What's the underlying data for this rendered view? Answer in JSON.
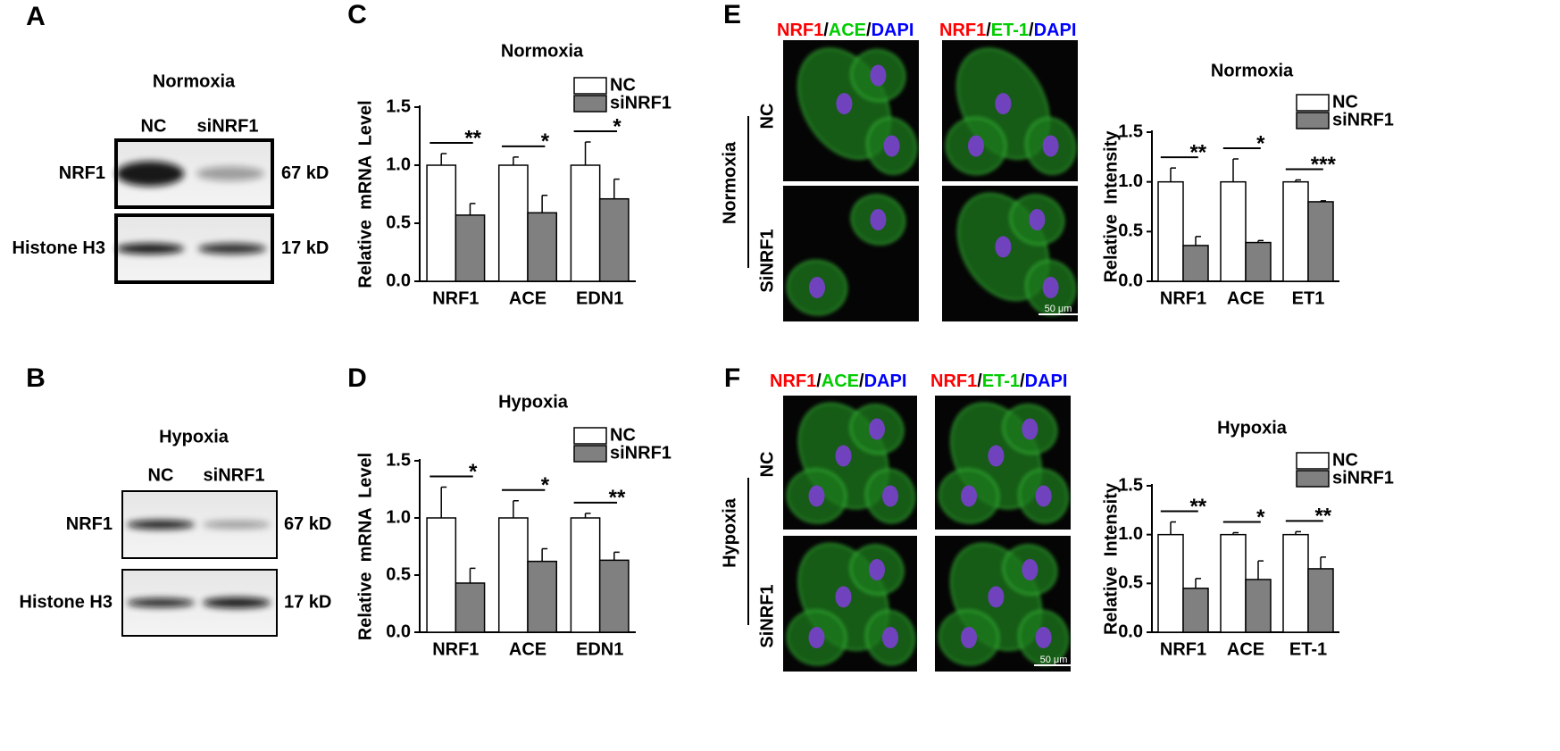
{
  "panels": {
    "A": {
      "letter": "A",
      "title": "Normoxia",
      "lanes": [
        "NC",
        "siNRF1"
      ],
      "rows": [
        {
          "name": "NRF1",
          "size": "67 kD"
        },
        {
          "name": "Histone H3",
          "size": "17 kD"
        }
      ]
    },
    "B": {
      "letter": "B",
      "title": "Hypoxia",
      "lanes": [
        "NC",
        "siNRF1"
      ],
      "rows": [
        {
          "name": "NRF1",
          "size": "67 kD"
        },
        {
          "name": "Histone H3",
          "size": "17 kD"
        }
      ]
    },
    "E": {
      "letter": "E",
      "condition": "Normoxia",
      "groups": [
        "NC",
        "SiNRF1"
      ],
      "scale": "50 μm",
      "stains": [
        [
          {
            "text": "NRF1",
            "color": "#ff0000"
          },
          {
            "text": "/",
            "color": "#000000"
          },
          {
            "text": "ACE",
            "color": "#00cc00"
          },
          {
            "text": "/",
            "color": "#000000"
          },
          {
            "text": "DAPI",
            "color": "#0000ff"
          }
        ],
        [
          {
            "text": "NRF1",
            "color": "#ff0000"
          },
          {
            "text": "/",
            "color": "#000000"
          },
          {
            "text": "ET-1",
            "color": "#00cc00"
          },
          {
            "text": "/",
            "color": "#000000"
          },
          {
            "text": "DAPI",
            "color": "#0000ff"
          }
        ]
      ]
    },
    "F": {
      "letter": "F",
      "condition": "Hypoxia",
      "groups": [
        "NC",
        "SiNRF1"
      ],
      "scale": "50 μm",
      "stains": [
        [
          {
            "text": "NRF1",
            "color": "#ff0000"
          },
          {
            "text": "/",
            "color": "#000000"
          },
          {
            "text": "ACE",
            "color": "#00cc00"
          },
          {
            "text": "/",
            "color": "#000000"
          },
          {
            "text": "DAPI",
            "color": "#0000ff"
          }
        ],
        [
          {
            "text": "NRF1",
            "color": "#ff0000"
          },
          {
            "text": "/",
            "color": "#000000"
          },
          {
            "text": "ET-1",
            "color": "#00cc00"
          },
          {
            "text": "/",
            "color": "#000000"
          },
          {
            "text": "DAPI",
            "color": "#0000ff"
          }
        ]
      ]
    }
  },
  "chart_data": [
    {
      "type": "bar",
      "letter": "C",
      "title": "Normoxia",
      "y_label": "Relative  mRNA  Level",
      "categories": [
        "NRF1",
        "ACE",
        "EDN1"
      ],
      "series": [
        {
          "name": "NC",
          "color": "#ffffff",
          "values": [
            1.0,
            1.0,
            1.0
          ],
          "errors": [
            0.1,
            0.07,
            0.2
          ]
        },
        {
          "name": "siNRF1",
          "color": "#808080",
          "values": [
            0.57,
            0.59,
            0.71
          ],
          "errors": [
            0.1,
            0.15,
            0.17
          ]
        }
      ],
      "significance": [
        "**",
        "*",
        "*"
      ],
      "ylim": [
        0,
        1.5
      ],
      "yticks": [
        {
          "value": 0,
          "label": "0.0"
        },
        0.5,
        {
          "value": 1,
          "label": "1.0"
        },
        1.5
      ]
    },
    {
      "type": "bar",
      "letter": "D",
      "title": "Hypoxia",
      "y_label": "Relative  mRNA  Level",
      "categories": [
        "NRF1",
        "ACE",
        "EDN1"
      ],
      "series": [
        {
          "name": "NC",
          "color": "#ffffff",
          "values": [
            1.0,
            1.0,
            1.0
          ],
          "errors": [
            0.27,
            0.15,
            0.04
          ]
        },
        {
          "name": "siNRF1",
          "color": "#808080",
          "values": [
            0.43,
            0.62,
            0.63
          ],
          "errors": [
            0.13,
            0.11,
            0.07
          ]
        }
      ],
      "significance": [
        "*",
        "*",
        "**"
      ],
      "ylim": [
        0,
        1.5
      ],
      "yticks": [
        {
          "value": 0,
          "label": "0.0"
        },
        0.5,
        {
          "value": 1,
          "label": "1.0"
        },
        1.5
      ]
    },
    {
      "type": "bar",
      "title": "Normoxia",
      "y_label": "Relative  Intensity",
      "categories": [
        "NRF1",
        "ACE",
        "ET1"
      ],
      "series": [
        {
          "name": "NC",
          "color": "#ffffff",
          "values": [
            1.0,
            1.0,
            1.0
          ],
          "errors": [
            0.14,
            0.23,
            0.02
          ]
        },
        {
          "name": "siNRF1",
          "color": "#808080",
          "values": [
            0.36,
            0.39,
            0.8
          ],
          "errors": [
            0.09,
            0.02,
            0.01
          ]
        }
      ],
      "significance": [
        "**",
        "*",
        "***"
      ],
      "ylim": [
        0,
        1.5
      ],
      "yticks": [
        {
          "value": 0,
          "label": "0.0"
        },
        0.5,
        {
          "value": 1,
          "label": "1.0"
        },
        1.5
      ]
    },
    {
      "type": "bar",
      "title": "Hypoxia",
      "y_label": "Relative  Intensity",
      "categories": [
        "NRF1",
        "ACE",
        "ET-1"
      ],
      "series": [
        {
          "name": "NC",
          "color": "#ffffff",
          "values": [
            1.0,
            1.0,
            1.0
          ],
          "errors": [
            0.13,
            0.02,
            0.03
          ]
        },
        {
          "name": "siNRF1",
          "color": "#808080",
          "values": [
            0.45,
            0.54,
            0.65
          ],
          "errors": [
            0.1,
            0.19,
            0.12
          ]
        }
      ],
      "significance": [
        "**",
        "*",
        "**"
      ],
      "ylim": [
        0,
        1.5
      ],
      "yticks": [
        {
          "value": 0,
          "label": "0.0"
        },
        0.5,
        {
          "value": 1,
          "label": "1.0"
        },
        1.5
      ]
    }
  ]
}
